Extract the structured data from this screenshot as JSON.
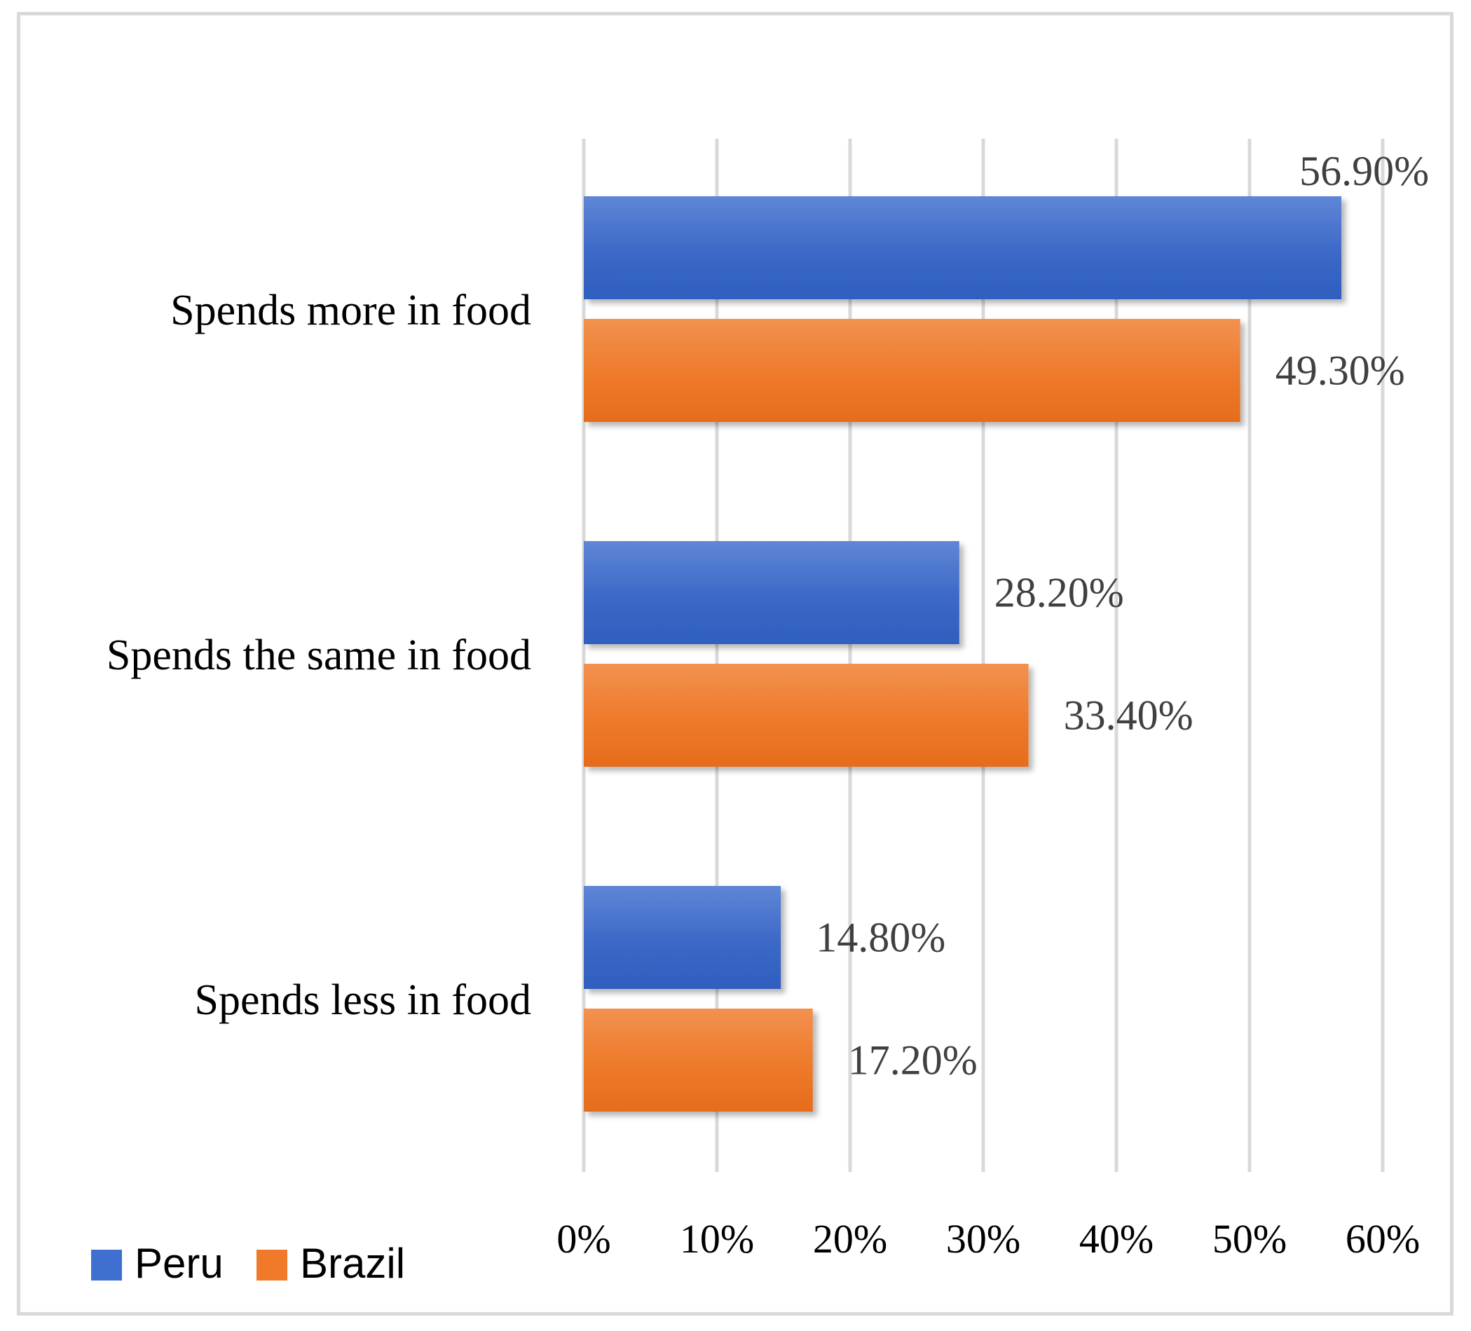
{
  "chart_data": {
    "type": "bar",
    "orientation": "horizontal",
    "title": "",
    "xlabel": "",
    "ylabel": "",
    "categories": [
      "Spends more in food",
      "Spends the same in food",
      "Spends less in food"
    ],
    "series": [
      {
        "name": "Peru",
        "color": "#3f6fd1",
        "values": [
          56.9,
          28.2,
          14.8
        ],
        "labels": [
          "56.90%",
          "28.20%",
          "14.80%"
        ]
      },
      {
        "name": "Brazil",
        "color": "#f07a2a",
        "values": [
          49.3,
          33.4,
          17.2
        ],
        "labels": [
          "49.30%",
          "33.40%",
          "17.20%"
        ]
      }
    ],
    "xlim": [
      0,
      60
    ],
    "ticks": [
      0,
      10,
      20,
      30,
      40,
      50,
      60
    ],
    "tick_labels": [
      "0%",
      "10%",
      "20%",
      "30%",
      "40%",
      "50%",
      "60%"
    ],
    "grid": true,
    "legend": {
      "position": "bottom-left",
      "entries": [
        "Peru",
        "Brazil"
      ]
    }
  }
}
